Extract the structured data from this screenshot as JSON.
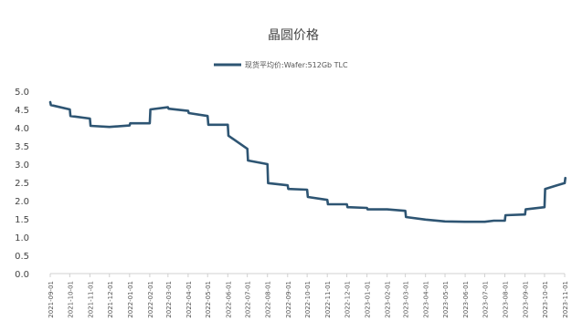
{
  "chart_data": {
    "type": "line",
    "title": "晶圆价格",
    "xlabel": "",
    "ylabel": "",
    "ylim": [
      0,
      5
    ],
    "yticks": [
      "5.0",
      "4.5",
      "4.0",
      "3.5",
      "3.0",
      "2.5",
      "2.0",
      "1.5",
      "1.0",
      "0.5",
      "0.0"
    ],
    "legend_position": "top",
    "grid": false,
    "categories": [
      "2021-09-01",
      "2021-10-01",
      "2021-11-01",
      "2021-12-01",
      "2022-01-01",
      "2022-02-01",
      "2022-03-01",
      "2022-04-01",
      "2022-05-01",
      "2022-06-01",
      "2022-07-01",
      "2022-08-01",
      "2022-09-01",
      "2022-10-01",
      "2022-11-01",
      "2022-12-01",
      "2023-01-01",
      "2023-02-01",
      "2023-03-01",
      "2023-04-01",
      "2023-05-01",
      "2023-06-01",
      "2023-07-01",
      "2023-08-01",
      "2023-09-01",
      "2023-10-01",
      "2023-11-01"
    ],
    "series": [
      {
        "name": "现货平均价:Wafer:512Gb TLC",
        "color": "#2e5573",
        "points": [
          [
            "2021-09-01",
            4.7
          ],
          [
            "2021-09-02",
            4.62
          ],
          [
            "2021-10-01",
            4.5
          ],
          [
            "2021-10-02",
            4.32
          ],
          [
            "2021-11-01",
            4.25
          ],
          [
            "2021-11-02",
            4.05
          ],
          [
            "2021-12-01",
            4.02
          ],
          [
            "2022-01-01",
            4.06
          ],
          [
            "2022-01-02",
            4.12
          ],
          [
            "2022-02-01",
            4.12
          ],
          [
            "2022-02-02",
            4.5
          ],
          [
            "2022-03-01",
            4.56
          ],
          [
            "2022-03-02",
            4.52
          ],
          [
            "2022-04-01",
            4.46
          ],
          [
            "2022-04-02",
            4.4
          ],
          [
            "2022-05-01",
            4.32
          ],
          [
            "2022-05-02",
            4.08
          ],
          [
            "2022-06-01",
            4.08
          ],
          [
            "2022-06-02",
            3.78
          ],
          [
            "2022-07-01",
            3.42
          ],
          [
            "2022-07-02",
            3.1
          ],
          [
            "2022-08-01",
            3.0
          ],
          [
            "2022-08-02",
            2.48
          ],
          [
            "2022-09-01",
            2.42
          ],
          [
            "2022-09-02",
            2.32
          ],
          [
            "2022-10-01",
            2.3
          ],
          [
            "2022-10-02",
            2.1
          ],
          [
            "2022-11-01",
            2.02
          ],
          [
            "2022-11-02",
            1.9
          ],
          [
            "2022-12-01",
            1.9
          ],
          [
            "2022-12-02",
            1.82
          ],
          [
            "2023-01-01",
            1.8
          ],
          [
            "2023-01-02",
            1.76
          ],
          [
            "2023-02-01",
            1.76
          ],
          [
            "2023-03-01",
            1.72
          ],
          [
            "2023-03-02",
            1.55
          ],
          [
            "2023-04-01",
            1.48
          ],
          [
            "2023-05-01",
            1.43
          ],
          [
            "2023-06-01",
            1.42
          ],
          [
            "2023-07-01",
            1.42
          ],
          [
            "2023-07-15",
            1.45
          ],
          [
            "2023-08-01",
            1.45
          ],
          [
            "2023-08-02",
            1.6
          ],
          [
            "2023-09-01",
            1.62
          ],
          [
            "2023-09-02",
            1.76
          ],
          [
            "2023-10-01",
            1.82
          ],
          [
            "2023-10-02",
            2.32
          ],
          [
            "2023-10-20",
            2.42
          ],
          [
            "2023-11-01",
            2.48
          ],
          [
            "2023-11-02",
            2.62
          ]
        ]
      }
    ]
  }
}
